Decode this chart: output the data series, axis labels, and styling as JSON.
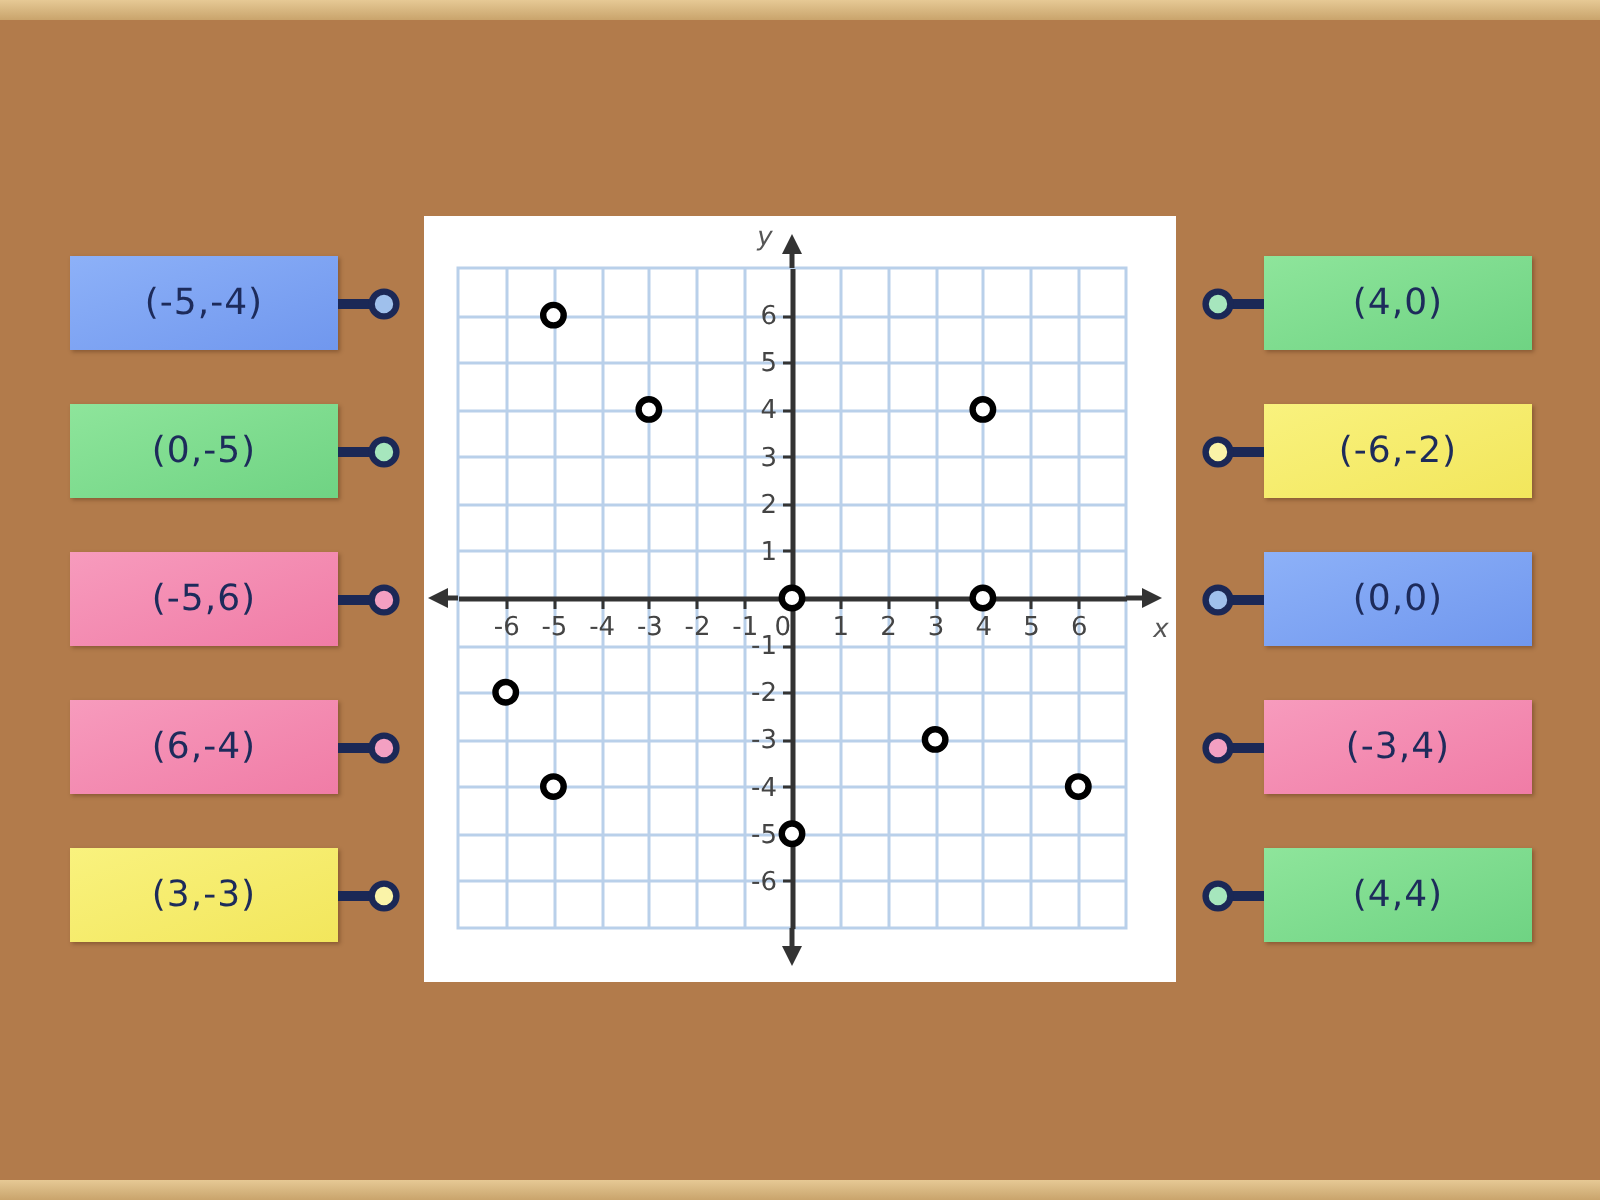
{
  "chart_data": {
    "type": "scatter",
    "xlabel": "x",
    "ylabel": "y",
    "x": [
      -5,
      -3,
      4,
      0,
      4,
      -6,
      -5,
      3,
      6,
      0
    ],
    "values": [
      6,
      4,
      4,
      0,
      0,
      -2,
      -4,
      -3,
      -4,
      -5
    ],
    "color": "#000000",
    "marker": "circle",
    "xlim": [
      -7,
      7
    ],
    "ylim": [
      -7,
      7
    ],
    "xticks": [
      -6,
      -5,
      -4,
      -3,
      -2,
      -1,
      0,
      1,
      2,
      3,
      4,
      5,
      6
    ],
    "yticks": [
      -6,
      -5,
      -4,
      -3,
      -2,
      -1,
      1,
      2,
      3,
      4,
      5,
      6
    ],
    "grid": true,
    "annotations": [
      "(-5,-4)",
      "(0,-5)",
      "(-5,6)",
      "(6,-4)",
      "(3,-3)",
      "(4,0)",
      "(-6,-2)",
      "(0,0)",
      "(-3,4)",
      "(4,4)"
    ]
  }
}
